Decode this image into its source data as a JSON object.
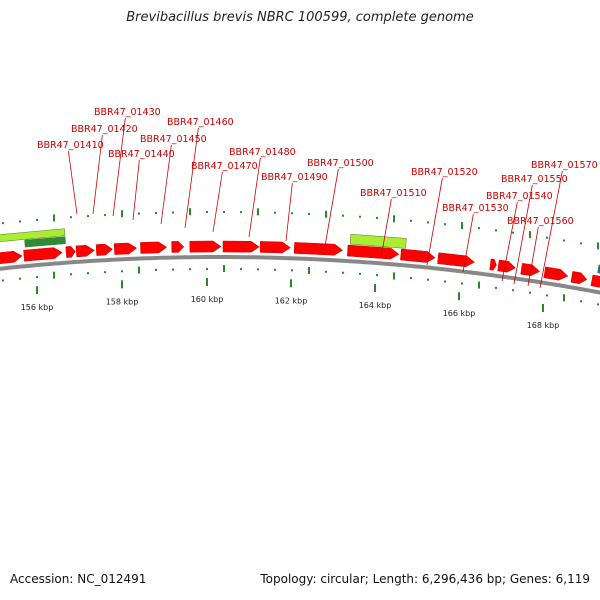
{
  "title": "Brevibacillus brevis NBRC 100599, complete genome",
  "footer": {
    "accession": "Accession: NC_012491",
    "summary": "Topology: circular; Length: 6,296,436 bp; Genes: 6,119"
  },
  "gene_labels": [
    "BBR47_01410",
    "BBR47_01420",
    "BBR47_01430",
    "BBR47_01440",
    "BBR47_01450",
    "BBR47_01460",
    "BBR47_01470",
    "BBR47_01480",
    "BBR47_01490",
    "BBR47_01500",
    "BBR47_01510",
    "BBR47_01520",
    "BBR47_01530",
    "BBR47_01540",
    "BBR47_01550",
    "BBR47_01560",
    "BBR47_01570"
  ],
  "scale_labels": [
    "156 kbp",
    "158 kbp",
    "160 kbp",
    "162 kbp",
    "164 kbp",
    "166 kbp",
    "168 kbp"
  ],
  "colors": {
    "gene": "#ff0000",
    "gene_label": "#cc0000",
    "rna_feature": "#aaee33",
    "backbone": "#888888",
    "tick": "#2a8a2a"
  }
}
